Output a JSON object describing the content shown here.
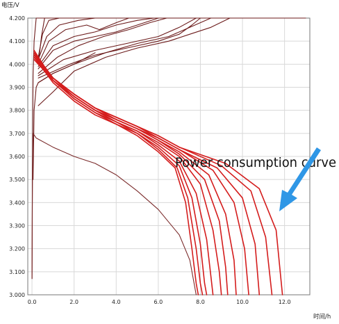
{
  "chart_data": {
    "type": "line",
    "ylabel": "电压/V",
    "xlabel": "时间/h",
    "xlim": [
      -0.2,
      13.2
    ],
    "ylim": [
      3.0,
      4.2
    ],
    "x_ticks": [
      "0.0",
      "2.0",
      "4.0",
      "6.0",
      "8.0",
      "10.0",
      "12.0"
    ],
    "x_tick_values": [
      0,
      2,
      4,
      6,
      8,
      10,
      12
    ],
    "y_ticks": [
      "3.000",
      "3.100",
      "3.200",
      "3.300",
      "3.400",
      "3.500",
      "3.600",
      "3.700",
      "3.800",
      "3.900",
      "4.000",
      "4.100",
      "4.200"
    ],
    "y_tick_values": [
      3.0,
      3.1,
      3.2,
      3.3,
      3.4,
      3.5,
      3.6,
      3.7,
      3.8,
      3.9,
      4.0,
      4.1,
      4.2
    ],
    "grid": true,
    "annotation": "Power consumption curve",
    "colors": {
      "charge": "#6b1a1a",
      "discharge": "#d41c1c",
      "outlier": "#7a2a2a",
      "arrow": "#2f97e6",
      "grid": "#d8d8d8",
      "axis": "#777777"
    },
    "series": [
      {
        "role": "charge",
        "values": [
          [
            0.0,
            3.07
          ],
          [
            0.02,
            3.55
          ],
          [
            0.05,
            3.95
          ],
          [
            0.1,
            4.1
          ],
          [
            0.2,
            4.2
          ],
          [
            13.0,
            4.2
          ]
        ]
      },
      {
        "role": "charge",
        "values": [
          [
            0.3,
            4.0
          ],
          [
            0.45,
            4.12
          ],
          [
            0.6,
            4.2
          ],
          [
            13.0,
            4.2
          ]
        ]
      },
      {
        "role": "charge",
        "values": [
          [
            0.3,
            4.03
          ],
          [
            0.5,
            4.13
          ],
          [
            0.8,
            4.19
          ],
          [
            1.3,
            4.2
          ],
          [
            13.0,
            4.2
          ]
        ]
      },
      {
        "role": "charge",
        "values": [
          [
            0.3,
            4.02
          ],
          [
            0.7,
            4.12
          ],
          [
            1.3,
            4.17
          ],
          [
            2.2,
            4.19
          ],
          [
            3.0,
            4.2
          ]
        ]
      },
      {
        "role": "charge",
        "values": [
          [
            0.3,
            4.0
          ],
          [
            0.8,
            4.1
          ],
          [
            1.6,
            4.15
          ],
          [
            2.6,
            4.17
          ],
          [
            3.2,
            4.15
          ],
          [
            4.0,
            4.18
          ],
          [
            4.6,
            4.2
          ]
        ]
      },
      {
        "role": "charge",
        "values": [
          [
            0.3,
            3.99
          ],
          [
            1.0,
            4.08
          ],
          [
            2.0,
            4.12
          ],
          [
            3.0,
            4.14
          ],
          [
            4.0,
            4.17
          ],
          [
            5.0,
            4.19
          ],
          [
            5.8,
            4.2
          ]
        ]
      },
      {
        "role": "charge",
        "values": [
          [
            0.3,
            3.98
          ],
          [
            1.0,
            4.06
          ],
          [
            2.0,
            4.1
          ],
          [
            3.0,
            4.12
          ],
          [
            4.0,
            4.14
          ],
          [
            5.0,
            4.17
          ],
          [
            6.0,
            4.2
          ]
        ]
      },
      {
        "role": "charge",
        "values": [
          [
            0.3,
            3.96
          ],
          [
            1.2,
            4.03
          ],
          [
            2.2,
            4.08
          ],
          [
            3.4,
            4.12
          ],
          [
            4.6,
            4.15
          ],
          [
            5.6,
            4.18
          ],
          [
            6.4,
            4.2
          ]
        ]
      },
      {
        "role": "charge",
        "values": [
          [
            0.3,
            3.95
          ],
          [
            1.5,
            4.02
          ],
          [
            3.0,
            4.06
          ],
          [
            4.5,
            4.09
          ],
          [
            6.0,
            4.12
          ],
          [
            7.0,
            4.16
          ],
          [
            7.8,
            4.2
          ]
        ]
      },
      {
        "role": "charge",
        "values": [
          [
            0.3,
            3.94
          ],
          [
            1.8,
            4.0
          ],
          [
            3.0,
            4.04
          ],
          [
            4.5,
            4.07
          ],
          [
            6.0,
            4.1
          ],
          [
            7.0,
            4.13
          ],
          [
            7.6,
            4.17
          ],
          [
            8.0,
            4.2
          ]
        ]
      },
      {
        "role": "charge",
        "values": [
          [
            0.3,
            3.92
          ],
          [
            1.0,
            3.96
          ],
          [
            2.0,
            4.0
          ],
          [
            3.5,
            4.05
          ],
          [
            5.0,
            4.09
          ],
          [
            6.5,
            4.12
          ],
          [
            7.5,
            4.16
          ],
          [
            8.5,
            4.2
          ]
        ]
      },
      {
        "role": "charge",
        "values": [
          [
            0.3,
            3.82
          ],
          [
            1.0,
            3.88
          ],
          [
            2.0,
            3.97
          ],
          [
            3.5,
            4.03
          ],
          [
            5.0,
            4.07
          ],
          [
            6.5,
            4.1
          ],
          [
            7.5,
            4.13
          ],
          [
            8.5,
            4.16
          ],
          [
            9.4,
            4.2
          ]
        ]
      },
      {
        "role": "charge",
        "values": [
          [
            0.05,
            3.5
          ],
          [
            0.1,
            3.8
          ],
          [
            0.2,
            3.9
          ],
          [
            0.3,
            3.92
          ],
          [
            1.0,
            3.96
          ],
          [
            2.0,
            4.0
          ],
          [
            3.0,
            4.05
          ]
        ]
      },
      {
        "role": "discharge",
        "values": [
          [
            0.1,
            4.03
          ],
          [
            1.0,
            3.92
          ],
          [
            2.0,
            3.84
          ],
          [
            3.0,
            3.78
          ],
          [
            4.0,
            3.74
          ],
          [
            5.0,
            3.69
          ],
          [
            6.0,
            3.62
          ],
          [
            6.8,
            3.55
          ],
          [
            7.3,
            3.4
          ],
          [
            7.6,
            3.2
          ],
          [
            7.8,
            3.05
          ],
          [
            7.9,
            3.0
          ]
        ]
      },
      {
        "role": "discharge",
        "values": [
          [
            0.1,
            4.05
          ],
          [
            1.0,
            3.93
          ],
          [
            2.0,
            3.85
          ],
          [
            3.0,
            3.79
          ],
          [
            4.0,
            3.74
          ],
          [
            5.0,
            3.7
          ],
          [
            6.0,
            3.63
          ],
          [
            6.9,
            3.55
          ],
          [
            7.4,
            3.42
          ],
          [
            7.8,
            3.2
          ],
          [
            8.0,
            3.05
          ],
          [
            8.1,
            3.0
          ]
        ]
      },
      {
        "role": "discharge",
        "values": [
          [
            0.1,
            4.04
          ],
          [
            1.0,
            3.93
          ],
          [
            2.0,
            3.85
          ],
          [
            3.0,
            3.79
          ],
          [
            4.0,
            3.75
          ],
          [
            5.0,
            3.7
          ],
          [
            6.0,
            3.64
          ],
          [
            7.0,
            3.56
          ],
          [
            7.6,
            3.42
          ],
          [
            8.0,
            3.22
          ],
          [
            8.2,
            3.05
          ],
          [
            8.3,
            3.0
          ]
        ]
      },
      {
        "role": "discharge",
        "values": [
          [
            0.1,
            4.03
          ],
          [
            1.0,
            3.93
          ],
          [
            2.0,
            3.86
          ],
          [
            3.0,
            3.8
          ],
          [
            4.0,
            3.75
          ],
          [
            5.0,
            3.71
          ],
          [
            6.0,
            3.65
          ],
          [
            7.0,
            3.58
          ],
          [
            7.8,
            3.44
          ],
          [
            8.3,
            3.24
          ],
          [
            8.5,
            3.08
          ],
          [
            8.6,
            3.0
          ]
        ]
      },
      {
        "role": "discharge",
        "values": [
          [
            0.1,
            4.06
          ],
          [
            1.0,
            3.93
          ],
          [
            2.0,
            3.86
          ],
          [
            3.0,
            3.8
          ],
          [
            4.0,
            3.75
          ],
          [
            5.0,
            3.71
          ],
          [
            6.0,
            3.66
          ],
          [
            7.0,
            3.6
          ],
          [
            8.0,
            3.48
          ],
          [
            8.6,
            3.28
          ],
          [
            8.9,
            3.1
          ],
          [
            9.0,
            3.0
          ]
        ]
      },
      {
        "role": "discharge",
        "values": [
          [
            0.1,
            4.02
          ],
          [
            1.0,
            3.93
          ],
          [
            2.0,
            3.86
          ],
          [
            3.0,
            3.8
          ],
          [
            4.0,
            3.76
          ],
          [
            5.0,
            3.72
          ],
          [
            6.0,
            3.67
          ],
          [
            7.0,
            3.61
          ],
          [
            8.2,
            3.5
          ],
          [
            8.9,
            3.32
          ],
          [
            9.2,
            3.12
          ],
          [
            9.3,
            3.0
          ]
        ]
      },
      {
        "role": "discharge",
        "values": [
          [
            0.1,
            4.05
          ],
          [
            1.0,
            3.94
          ],
          [
            2.0,
            3.86
          ],
          [
            3.0,
            3.8
          ],
          [
            4.0,
            3.76
          ],
          [
            5.0,
            3.72
          ],
          [
            6.0,
            3.67
          ],
          [
            7.0,
            3.62
          ],
          [
            8.4,
            3.52
          ],
          [
            9.2,
            3.35
          ],
          [
            9.6,
            3.15
          ],
          [
            9.7,
            3.0
          ]
        ]
      },
      {
        "role": "discharge",
        "values": [
          [
            0.1,
            4.04
          ],
          [
            1.0,
            3.94
          ],
          [
            2.0,
            3.87
          ],
          [
            3.0,
            3.81
          ],
          [
            4.0,
            3.76
          ],
          [
            5.0,
            3.72
          ],
          [
            6.0,
            3.68
          ],
          [
            7.0,
            3.63
          ],
          [
            8.6,
            3.54
          ],
          [
            9.6,
            3.4
          ],
          [
            10.1,
            3.2
          ],
          [
            10.3,
            3.0
          ]
        ]
      },
      {
        "role": "discharge",
        "values": [
          [
            0.1,
            4.03
          ],
          [
            1.0,
            3.94
          ],
          [
            2.0,
            3.87
          ],
          [
            3.0,
            3.81
          ],
          [
            4.0,
            3.77
          ],
          [
            5.0,
            3.73
          ],
          [
            6.0,
            3.68
          ],
          [
            7.0,
            3.63
          ],
          [
            8.8,
            3.55
          ],
          [
            10.0,
            3.42
          ],
          [
            10.6,
            3.22
          ],
          [
            10.8,
            3.0
          ]
        ]
      },
      {
        "role": "discharge",
        "values": [
          [
            0.1,
            4.05
          ],
          [
            1.0,
            3.94
          ],
          [
            2.0,
            3.87
          ],
          [
            3.0,
            3.81
          ],
          [
            4.0,
            3.77
          ],
          [
            5.0,
            3.73
          ],
          [
            6.0,
            3.69
          ],
          [
            7.0,
            3.64
          ],
          [
            9.0,
            3.56
          ],
          [
            10.4,
            3.45
          ],
          [
            11.1,
            3.25
          ],
          [
            11.4,
            3.0
          ]
        ]
      },
      {
        "role": "discharge",
        "values": [
          [
            0.1,
            4.04
          ],
          [
            1.0,
            3.94
          ],
          [
            2.0,
            3.87
          ],
          [
            3.0,
            3.81
          ],
          [
            4.0,
            3.77
          ],
          [
            5.0,
            3.73
          ],
          [
            6.0,
            3.69
          ],
          [
            7.0,
            3.64
          ],
          [
            9.2,
            3.57
          ],
          [
            10.8,
            3.46
          ],
          [
            11.6,
            3.28
          ],
          [
            11.9,
            3.0
          ]
        ]
      },
      {
        "role": "outlier",
        "values": [
          [
            0.0,
            3.07
          ],
          [
            0.02,
            3.5
          ],
          [
            0.05,
            3.7
          ],
          [
            0.2,
            3.68
          ],
          [
            1.0,
            3.64
          ],
          [
            2.0,
            3.6
          ],
          [
            3.0,
            3.57
          ],
          [
            4.0,
            3.52
          ],
          [
            5.0,
            3.45
          ],
          [
            6.0,
            3.37
          ],
          [
            7.0,
            3.26
          ],
          [
            7.5,
            3.15
          ],
          [
            7.8,
            3.0
          ]
        ]
      }
    ]
  }
}
